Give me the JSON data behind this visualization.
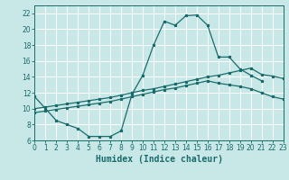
{
  "xlabel": "Humidex (Indice chaleur)",
  "bg_color": "#c8e8e8",
  "grid_color": "#ffffff",
  "line_color": "#1a6b6b",
  "xlim": [
    0,
    23
  ],
  "ylim": [
    6,
    23
  ],
  "xticks": [
    0,
    1,
    2,
    3,
    4,
    5,
    6,
    7,
    8,
    9,
    10,
    11,
    12,
    13,
    14,
    15,
    16,
    17,
    18,
    19,
    20,
    21,
    22,
    23
  ],
  "yticks": [
    6,
    8,
    10,
    12,
    14,
    16,
    18,
    20,
    22
  ],
  "curve1_x": [
    0,
    1,
    2,
    3,
    4,
    5,
    6,
    7,
    8,
    9,
    10,
    11,
    12,
    13,
    14,
    15,
    16,
    17,
    18,
    19,
    20,
    21
  ],
  "curve1_y": [
    11.5,
    10.0,
    8.5,
    8.0,
    7.5,
    6.5,
    6.5,
    6.5,
    7.2,
    11.8,
    14.2,
    18.0,
    21.0,
    20.5,
    21.7,
    21.8,
    20.5,
    16.5,
    16.5,
    15.0,
    14.2,
    13.5
  ],
  "curve2_x": [
    0,
    1,
    2,
    3,
    4,
    5,
    6,
    7,
    8,
    9,
    10,
    11,
    12,
    13,
    14,
    15,
    16,
    17,
    18,
    19,
    20,
    21,
    22,
    23
  ],
  "curve2_y": [
    10.0,
    10.2,
    10.4,
    10.6,
    10.8,
    11.0,
    11.2,
    11.4,
    11.7,
    12.0,
    12.3,
    12.5,
    12.8,
    13.1,
    13.4,
    13.7,
    14.0,
    14.2,
    14.5,
    14.8,
    15.1,
    14.3,
    14.1,
    13.8
  ],
  "curve3_x": [
    0,
    1,
    2,
    3,
    4,
    5,
    6,
    7,
    8,
    9,
    10,
    11,
    12,
    13,
    14,
    15,
    16,
    17,
    18,
    19,
    20,
    21,
    22,
    23
  ],
  "curve3_y": [
    9.5,
    9.7,
    9.9,
    10.1,
    10.3,
    10.5,
    10.7,
    10.9,
    11.2,
    11.5,
    11.8,
    12.1,
    12.4,
    12.6,
    12.9,
    13.2,
    13.5,
    13.2,
    13.0,
    12.8,
    12.5,
    12.0,
    11.5,
    11.2
  ],
  "font_size_xlabel": 7,
  "font_size_ticks": 5.5,
  "tick_color": "#1a6b6b"
}
